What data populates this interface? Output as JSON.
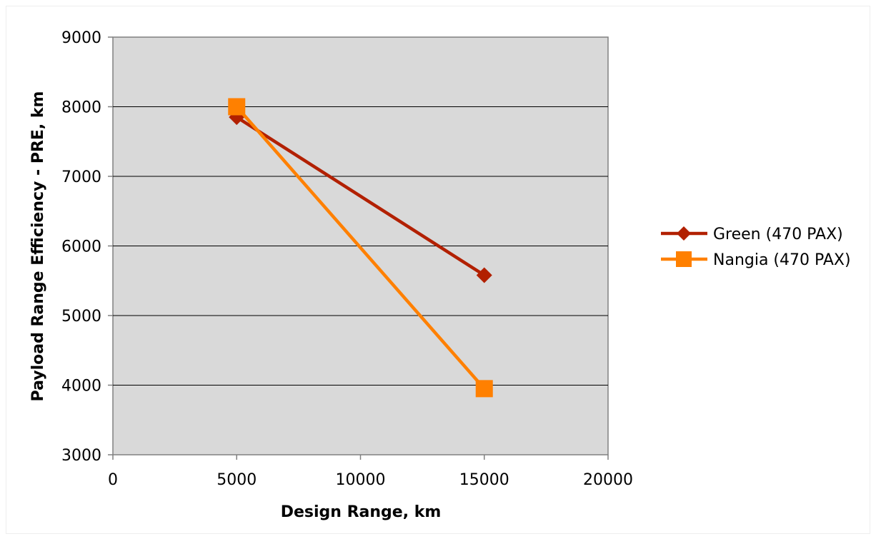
{
  "chart_data": {
    "type": "line",
    "title": "",
    "xlabel": "Design Range, km",
    "ylabel": "Payload Range Efficiency - PRE, km",
    "xlim": [
      0,
      20000
    ],
    "ylim": [
      3000,
      9000
    ],
    "xticks": [
      "0",
      "5000",
      "10000",
      "15000",
      "20000"
    ],
    "yticks": [
      "3000",
      "4000",
      "5000",
      "6000",
      "7000",
      "8000",
      "9000"
    ],
    "grid": "horizontal",
    "legend_position": "right",
    "plot_background": "#d9d9d9",
    "series": [
      {
        "name": "Green (470 PAX)",
        "color": "#b22000",
        "marker": "diamond",
        "x": [
          5000,
          15000
        ],
        "y": [
          7850,
          5580
        ]
      },
      {
        "name": "Nangia (470 PAX)",
        "color": "#ff8000",
        "marker": "square",
        "x": [
          5000,
          15000
        ],
        "y": [
          8000,
          3950
        ]
      }
    ]
  }
}
